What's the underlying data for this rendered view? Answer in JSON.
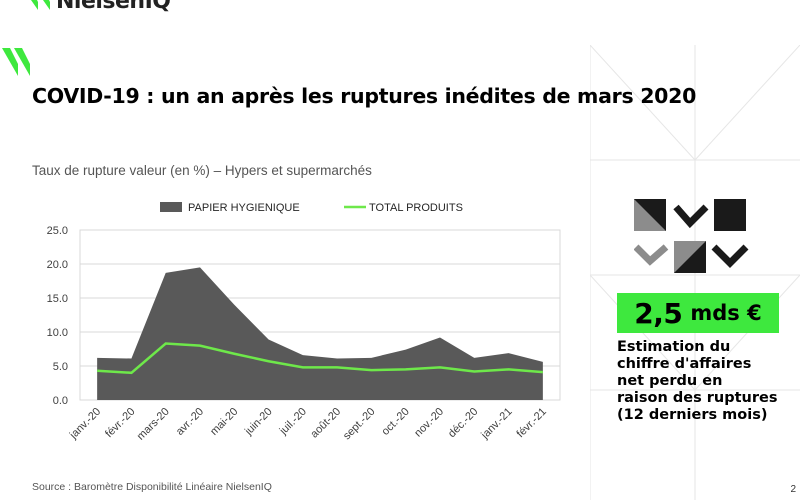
{
  "brand": {
    "name": "NielsenIQ",
    "accent_color": "#3ee83e"
  },
  "slide": {
    "title": "COVID-19 : un an après les ruptures inédites de mars 2020",
    "subtitle": "Taux de rupture valeur (en %)  – Hypers et supermarchés",
    "source": "Source : Baromètre Disponibilité Linéaire NielsenIQ",
    "page_number": "2"
  },
  "kpi": {
    "value": "2,5",
    "unit": "mds €",
    "description_lines": [
      "Estimation du",
      "chiffre d'affaires",
      "net perdu en",
      "raison des ruptures",
      "(12 derniers mois)"
    ]
  },
  "chart_data": {
    "type": "area",
    "categories": [
      "janv.-20",
      "févr.-20",
      "mars-20",
      "avr.-20",
      "mai-20",
      "juin-20",
      "juil.-20",
      "août-20",
      "sept.-20",
      "oct.-20",
      "nov.-20",
      "déc.-20",
      "janv.-21",
      "févr.-21"
    ],
    "series": [
      {
        "name": "PAPIER HYGIENIQUE",
        "type": "area",
        "color": "#595959",
        "values": [
          6.2,
          6.1,
          18.7,
          19.5,
          14.0,
          8.9,
          6.6,
          6.1,
          6.2,
          7.4,
          9.2,
          6.2,
          6.9,
          5.6
        ]
      },
      {
        "name": "TOTAL PRODUITS",
        "type": "line",
        "color": "#6ee84a",
        "values": [
          4.3,
          4.0,
          8.3,
          8.0,
          6.8,
          5.7,
          4.8,
          4.8,
          4.4,
          4.5,
          4.8,
          4.2,
          4.5,
          4.1
        ]
      }
    ],
    "y_ticks": [
      "0.0",
      "5.0",
      "10.0",
      "15.0",
      "20.0",
      "25.0"
    ],
    "ylim": [
      0,
      25
    ],
    "grid": true,
    "legend_position": "top"
  }
}
